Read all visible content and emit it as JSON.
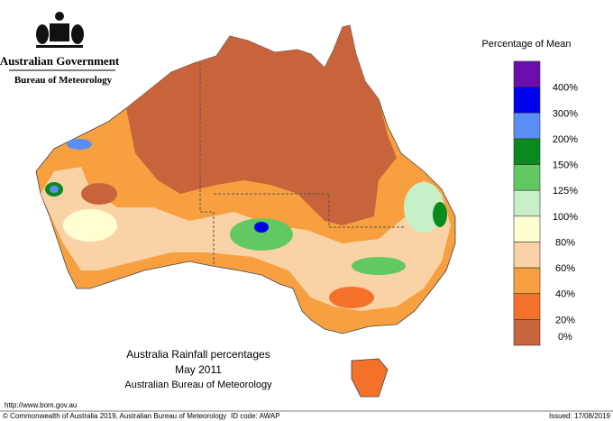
{
  "header": {
    "government": "Australian Government",
    "agency": "Bureau of Meteorology"
  },
  "legend": {
    "title": "Percentage of Mean",
    "bins": [
      {
        "color": "#6a0dad",
        "label": "400%"
      },
      {
        "color": "#0000f0",
        "label": "300%"
      },
      {
        "color": "#5b8ef5",
        "label": "200%"
      },
      {
        "color": "#0a8a1e",
        "label": "150%"
      },
      {
        "color": "#62c862",
        "label": "125%"
      },
      {
        "color": "#c8f0c8",
        "label": "100%"
      },
      {
        "color": "#ffffd2",
        "label": "80%"
      },
      {
        "color": "#f9d3a5",
        "label": "60%"
      },
      {
        "color": "#f8a040",
        "label": "40%"
      },
      {
        "color": "#f4712a",
        "label": "20%"
      },
      {
        "color": "#c8643c",
        "label": "0%"
      }
    ]
  },
  "title": {
    "line1": "Australia Rainfall percentages",
    "line2": "May 2011",
    "line3": "Australian Bureau of Meteorology"
  },
  "footer": {
    "url": "http://www.bom.gov.au",
    "copyright": "© Commonwealth of Australia 2019, Australian Bureau of Meteorology",
    "id_code": "ID code: AWAP",
    "issued": "Issued: 17/08/2019"
  }
}
